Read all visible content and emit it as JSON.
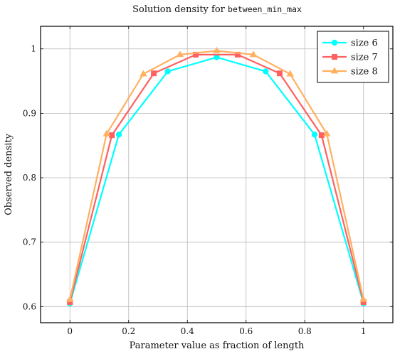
{
  "chart_data": {
    "type": "line",
    "title_prefix": "Solution density for ",
    "title_code": "between_min_max",
    "xlabel": "Parameter value as fraction of length",
    "ylabel": "Observed density",
    "xlim": [
      -0.1,
      1.1
    ],
    "ylim": [
      0.575,
      1.035
    ],
    "xticks": [
      0,
      0.2,
      0.4,
      0.6,
      0.8,
      1
    ],
    "xtick_labels": [
      "0",
      "0.2",
      "0.4",
      "0.6",
      "0.8",
      "1"
    ],
    "yticks": [
      0.6,
      0.7,
      0.8,
      0.9,
      1.0
    ],
    "ytick_labels": [
      "0.6",
      "0.7",
      "0.8",
      "0.9",
      "1"
    ],
    "grid": true,
    "legend_position": "top-right",
    "series": [
      {
        "name": "size 6",
        "color": "#00ffff",
        "marker": "circle",
        "x": [
          0,
          0.1667,
          0.3333,
          0.5,
          0.6667,
          0.8333,
          1
        ],
        "y": [
          0.605,
          0.867,
          0.965,
          0.987,
          0.965,
          0.867,
          0.605
        ]
      },
      {
        "name": "size 7",
        "color": "#ff6060",
        "marker": "square",
        "x": [
          0,
          0.1429,
          0.2857,
          0.4286,
          0.5714,
          0.7143,
          0.8571,
          1
        ],
        "y": [
          0.607,
          0.866,
          0.962,
          0.991,
          0.991,
          0.962,
          0.866,
          0.607
        ]
      },
      {
        "name": "size 8",
        "color": "#ffb060",
        "marker": "triangle",
        "x": [
          0,
          0.125,
          0.25,
          0.375,
          0.5,
          0.625,
          0.75,
          0.875,
          1
        ],
        "y": [
          0.611,
          0.868,
          0.961,
          0.991,
          0.997,
          0.991,
          0.961,
          0.868,
          0.611
        ]
      }
    ]
  }
}
